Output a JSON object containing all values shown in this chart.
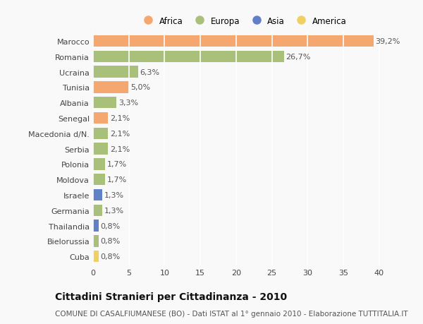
{
  "categories": [
    "Marocco",
    "Romania",
    "Ucraina",
    "Tunisia",
    "Albania",
    "Senegal",
    "Macedonia d/N.",
    "Serbia",
    "Polonia",
    "Moldova",
    "Israele",
    "Germania",
    "Thailandia",
    "Bielorussia",
    "Cuba"
  ],
  "values": [
    39.2,
    26.7,
    6.3,
    5.0,
    3.3,
    2.1,
    2.1,
    2.1,
    1.7,
    1.7,
    1.3,
    1.3,
    0.8,
    0.8,
    0.8
  ],
  "labels": [
    "39,2%",
    "26,7%",
    "6,3%",
    "5,0%",
    "3,3%",
    "2,1%",
    "2,1%",
    "2,1%",
    "1,7%",
    "1,7%",
    "1,3%",
    "1,3%",
    "0,8%",
    "0,8%",
    "0,8%"
  ],
  "colors": [
    "#f4a870",
    "#a8c07a",
    "#a8c07a",
    "#f4a870",
    "#a8c07a",
    "#f4a870",
    "#a8c07a",
    "#a8c07a",
    "#a8c07a",
    "#a8c07a",
    "#6080c8",
    "#a8c07a",
    "#6080c8",
    "#a8c07a",
    "#f0d060"
  ],
  "legend_labels": [
    "Africa",
    "Europa",
    "Asia",
    "America"
  ],
  "legend_colors": [
    "#f4a870",
    "#a8c07a",
    "#6080c8",
    "#f0d060"
  ],
  "title": "Cittadini Stranieri per Cittadinanza - 2010",
  "subtitle": "COMUNE DI CASALFIUMANESE (BO) - Dati ISTAT al 1° gennaio 2010 - Elaborazione TUTTITALIA.IT",
  "xlim": [
    0,
    42
  ],
  "xticks": [
    0,
    5,
    10,
    15,
    20,
    25,
    30,
    35,
    40
  ],
  "background_color": "#f9f9f9",
  "grid_color": "#ffffff",
  "bar_height": 0.75,
  "title_fontsize": 10,
  "subtitle_fontsize": 7.5,
  "label_fontsize": 8,
  "tick_fontsize": 8
}
